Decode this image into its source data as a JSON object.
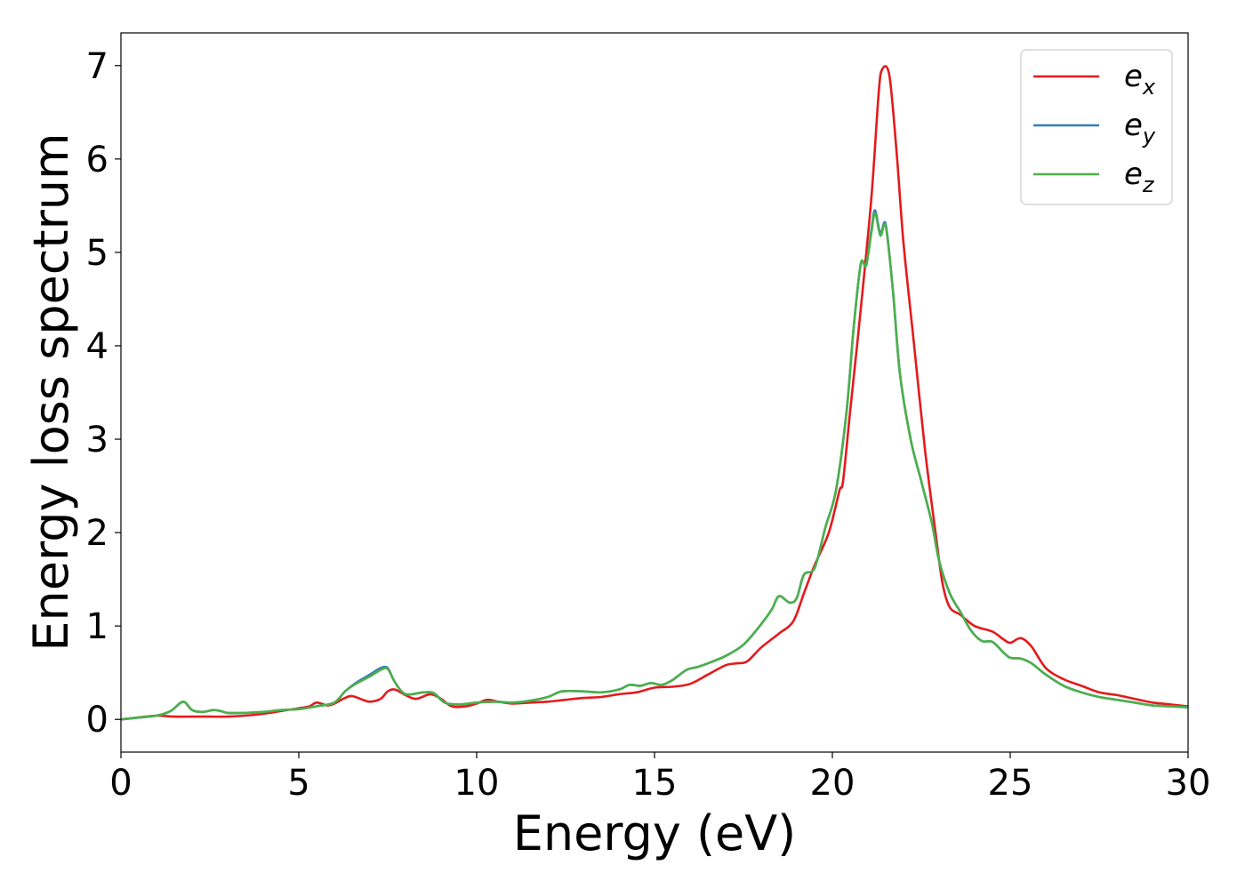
{
  "chart_data": {
    "type": "line",
    "title": "",
    "xlabel": "Energy (eV)",
    "ylabel": "Energy loss spectrum",
    "xlim": [
      0,
      30
    ],
    "ylim": [
      -0.35,
      7.35
    ],
    "xticks": [
      0,
      5,
      10,
      15,
      20,
      25,
      30
    ],
    "yticks": [
      0,
      1,
      2,
      3,
      4,
      5,
      6,
      7
    ],
    "grid": false,
    "legend_position": "top-right",
    "series": [
      {
        "name": "e_x",
        "legend_base": "e",
        "legend_sub": "x",
        "color": "#e41a1c",
        "points": [
          [
            0,
            0.0
          ],
          [
            0.5,
            0.02
          ],
          [
            1.0,
            0.04
          ],
          [
            1.5,
            0.03
          ],
          [
            2.0,
            0.03
          ],
          [
            2.5,
            0.03
          ],
          [
            3.0,
            0.03
          ],
          [
            3.5,
            0.04
          ],
          [
            4.0,
            0.06
          ],
          [
            4.5,
            0.09
          ],
          [
            5.0,
            0.12
          ],
          [
            5.3,
            0.14
          ],
          [
            5.5,
            0.18
          ],
          [
            5.8,
            0.15
          ],
          [
            6.0,
            0.17
          ],
          [
            6.3,
            0.23
          ],
          [
            6.5,
            0.25
          ],
          [
            6.8,
            0.21
          ],
          [
            7.0,
            0.19
          ],
          [
            7.3,
            0.22
          ],
          [
            7.5,
            0.3
          ],
          [
            7.7,
            0.32
          ],
          [
            8.0,
            0.26
          ],
          [
            8.3,
            0.22
          ],
          [
            8.7,
            0.27
          ],
          [
            9.0,
            0.22
          ],
          [
            9.3,
            0.14
          ],
          [
            9.7,
            0.14
          ],
          [
            10.0,
            0.17
          ],
          [
            10.3,
            0.21
          ],
          [
            10.6,
            0.19
          ],
          [
            11.0,
            0.17
          ],
          [
            11.5,
            0.18
          ],
          [
            12.0,
            0.19
          ],
          [
            12.5,
            0.21
          ],
          [
            13.0,
            0.23
          ],
          [
            13.5,
            0.24
          ],
          [
            14.0,
            0.27
          ],
          [
            14.5,
            0.29
          ],
          [
            15.0,
            0.34
          ],
          [
            15.5,
            0.35
          ],
          [
            16.0,
            0.38
          ],
          [
            16.5,
            0.48
          ],
          [
            17.0,
            0.58
          ],
          [
            17.3,
            0.6
          ],
          [
            17.6,
            0.62
          ],
          [
            18.0,
            0.77
          ],
          [
            18.5,
            0.92
          ],
          [
            18.9,
            1.05
          ],
          [
            19.2,
            1.35
          ],
          [
            19.5,
            1.65
          ],
          [
            19.9,
            2.0
          ],
          [
            20.2,
            2.45
          ],
          [
            20.3,
            2.55
          ],
          [
            20.5,
            3.3
          ],
          [
            20.8,
            4.4
          ],
          [
            21.1,
            5.6
          ],
          [
            21.3,
            6.7
          ],
          [
            21.4,
            6.96
          ],
          [
            21.6,
            6.9
          ],
          [
            21.8,
            6.1
          ],
          [
            22.0,
            5.1
          ],
          [
            22.3,
            4.0
          ],
          [
            22.6,
            2.9
          ],
          [
            22.9,
            2.0
          ],
          [
            23.1,
            1.45
          ],
          [
            23.3,
            1.2
          ],
          [
            23.6,
            1.12
          ],
          [
            24.0,
            1.0
          ],
          [
            24.5,
            0.94
          ],
          [
            24.8,
            0.86
          ],
          [
            25.0,
            0.82
          ],
          [
            25.3,
            0.87
          ],
          [
            25.6,
            0.78
          ],
          [
            26.0,
            0.55
          ],
          [
            26.5,
            0.43
          ],
          [
            27.0,
            0.36
          ],
          [
            27.5,
            0.29
          ],
          [
            28.0,
            0.26
          ],
          [
            28.5,
            0.22
          ],
          [
            29.0,
            0.18
          ],
          [
            29.5,
            0.16
          ],
          [
            30.0,
            0.14
          ]
        ]
      },
      {
        "name": "e_y",
        "legend_base": "e",
        "legend_sub": "y",
        "color": "#377eb8",
        "points": [
          [
            0,
            0.0
          ],
          [
            0.5,
            0.02
          ],
          [
            1.0,
            0.04
          ],
          [
            1.4,
            0.09
          ],
          [
            1.75,
            0.19
          ],
          [
            2.0,
            0.1
          ],
          [
            2.3,
            0.08
          ],
          [
            2.6,
            0.1
          ],
          [
            2.8,
            0.09
          ],
          [
            3.0,
            0.07
          ],
          [
            3.5,
            0.07
          ],
          [
            4.0,
            0.08
          ],
          [
            4.5,
            0.1
          ],
          [
            5.0,
            0.11
          ],
          [
            5.5,
            0.14
          ],
          [
            6.0,
            0.18
          ],
          [
            6.3,
            0.3
          ],
          [
            6.6,
            0.39
          ],
          [
            7.0,
            0.48
          ],
          [
            7.3,
            0.55
          ],
          [
            7.5,
            0.55
          ],
          [
            7.7,
            0.4
          ],
          [
            8.0,
            0.27
          ],
          [
            8.5,
            0.29
          ],
          [
            8.8,
            0.28
          ],
          [
            9.1,
            0.18
          ],
          [
            9.5,
            0.16
          ],
          [
            10.0,
            0.18
          ],
          [
            10.5,
            0.19
          ],
          [
            11.0,
            0.18
          ],
          [
            11.5,
            0.2
          ],
          [
            12.0,
            0.24
          ],
          [
            12.4,
            0.3
          ],
          [
            13.0,
            0.3
          ],
          [
            13.5,
            0.29
          ],
          [
            14.0,
            0.32
          ],
          [
            14.3,
            0.37
          ],
          [
            14.6,
            0.36
          ],
          [
            14.9,
            0.39
          ],
          [
            15.2,
            0.37
          ],
          [
            15.5,
            0.42
          ],
          [
            15.9,
            0.53
          ],
          [
            16.2,
            0.56
          ],
          [
            16.5,
            0.6
          ],
          [
            17.0,
            0.68
          ],
          [
            17.5,
            0.8
          ],
          [
            18.0,
            1.02
          ],
          [
            18.3,
            1.18
          ],
          [
            18.5,
            1.32
          ],
          [
            18.8,
            1.25
          ],
          [
            19.0,
            1.3
          ],
          [
            19.2,
            1.55
          ],
          [
            19.5,
            1.62
          ],
          [
            19.8,
            2.05
          ],
          [
            20.1,
            2.45
          ],
          [
            20.4,
            3.3
          ],
          [
            20.6,
            4.2
          ],
          [
            20.8,
            4.88
          ],
          [
            20.95,
            4.86
          ],
          [
            21.1,
            5.25
          ],
          [
            21.2,
            5.45
          ],
          [
            21.35,
            5.2
          ],
          [
            21.5,
            5.3
          ],
          [
            21.7,
            4.6
          ],
          [
            21.9,
            3.7
          ],
          [
            22.2,
            3.0
          ],
          [
            22.5,
            2.55
          ],
          [
            22.8,
            2.1
          ],
          [
            23.0,
            1.7
          ],
          [
            23.3,
            1.35
          ],
          [
            23.6,
            1.15
          ],
          [
            23.9,
            0.95
          ],
          [
            24.2,
            0.84
          ],
          [
            24.5,
            0.83
          ],
          [
            24.8,
            0.72
          ],
          [
            25.0,
            0.66
          ],
          [
            25.3,
            0.65
          ],
          [
            25.6,
            0.6
          ],
          [
            26.0,
            0.48
          ],
          [
            26.5,
            0.36
          ],
          [
            27.0,
            0.29
          ],
          [
            27.5,
            0.24
          ],
          [
            28.0,
            0.21
          ],
          [
            28.5,
            0.18
          ],
          [
            29.0,
            0.15
          ],
          [
            29.5,
            0.14
          ],
          [
            30.0,
            0.13
          ]
        ]
      },
      {
        "name": "e_z",
        "legend_base": "e",
        "legend_sub": "z",
        "color": "#4daf4a",
        "points": [
          [
            0,
            0.0
          ],
          [
            0.5,
            0.02
          ],
          [
            1.0,
            0.04
          ],
          [
            1.4,
            0.09
          ],
          [
            1.75,
            0.19
          ],
          [
            2.0,
            0.1
          ],
          [
            2.3,
            0.08
          ],
          [
            2.6,
            0.1
          ],
          [
            2.8,
            0.09
          ],
          [
            3.0,
            0.07
          ],
          [
            3.5,
            0.07
          ],
          [
            4.0,
            0.08
          ],
          [
            4.5,
            0.1
          ],
          [
            5.0,
            0.11
          ],
          [
            5.5,
            0.14
          ],
          [
            6.0,
            0.18
          ],
          [
            6.3,
            0.3
          ],
          [
            6.6,
            0.38
          ],
          [
            7.0,
            0.46
          ],
          [
            7.3,
            0.53
          ],
          [
            7.5,
            0.54
          ],
          [
            7.7,
            0.4
          ],
          [
            8.0,
            0.27
          ],
          [
            8.5,
            0.29
          ],
          [
            8.8,
            0.28
          ],
          [
            9.1,
            0.18
          ],
          [
            9.5,
            0.16
          ],
          [
            10.0,
            0.18
          ],
          [
            10.5,
            0.19
          ],
          [
            11.0,
            0.18
          ],
          [
            11.5,
            0.2
          ],
          [
            12.0,
            0.24
          ],
          [
            12.4,
            0.3
          ],
          [
            13.0,
            0.3
          ],
          [
            13.5,
            0.29
          ],
          [
            14.0,
            0.32
          ],
          [
            14.3,
            0.37
          ],
          [
            14.6,
            0.36
          ],
          [
            14.9,
            0.39
          ],
          [
            15.2,
            0.37
          ],
          [
            15.5,
            0.42
          ],
          [
            15.9,
            0.53
          ],
          [
            16.2,
            0.56
          ],
          [
            16.5,
            0.6
          ],
          [
            17.0,
            0.68
          ],
          [
            17.5,
            0.8
          ],
          [
            18.0,
            1.02
          ],
          [
            18.3,
            1.18
          ],
          [
            18.5,
            1.32
          ],
          [
            18.8,
            1.25
          ],
          [
            19.0,
            1.3
          ],
          [
            19.2,
            1.55
          ],
          [
            19.5,
            1.62
          ],
          [
            19.8,
            2.05
          ],
          [
            20.1,
            2.45
          ],
          [
            20.4,
            3.3
          ],
          [
            20.6,
            4.2
          ],
          [
            20.8,
            4.88
          ],
          [
            20.95,
            4.86
          ],
          [
            21.1,
            5.22
          ],
          [
            21.2,
            5.42
          ],
          [
            21.35,
            5.18
          ],
          [
            21.5,
            5.28
          ],
          [
            21.7,
            4.6
          ],
          [
            21.9,
            3.7
          ],
          [
            22.2,
            3.0
          ],
          [
            22.5,
            2.55
          ],
          [
            22.8,
            2.1
          ],
          [
            23.0,
            1.7
          ],
          [
            23.3,
            1.35
          ],
          [
            23.6,
            1.15
          ],
          [
            23.9,
            0.95
          ],
          [
            24.2,
            0.84
          ],
          [
            24.5,
            0.83
          ],
          [
            24.8,
            0.72
          ],
          [
            25.0,
            0.66
          ],
          [
            25.3,
            0.65
          ],
          [
            25.6,
            0.6
          ],
          [
            26.0,
            0.48
          ],
          [
            26.5,
            0.36
          ],
          [
            27.0,
            0.29
          ],
          [
            27.5,
            0.24
          ],
          [
            28.0,
            0.21
          ],
          [
            28.5,
            0.18
          ],
          [
            29.0,
            0.15
          ],
          [
            29.5,
            0.14
          ],
          [
            30.0,
            0.13
          ]
        ]
      }
    ]
  }
}
